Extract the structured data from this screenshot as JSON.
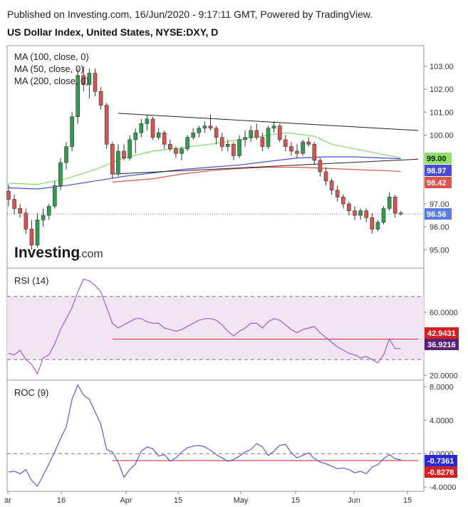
{
  "header": {
    "published": "Published on Investing.com, 16/Jun/2020 - 9:17:11 GMT, Powered by TradingView.",
    "title": "US Dollar Index, United States, NYSE:DXY, D"
  },
  "logo": {
    "brand": "Investing",
    "suffix": ".com"
  },
  "colors": {
    "bull": "#2e9e4f",
    "bear": "#d9534f",
    "ma100": "#4a4adb",
    "ma50": "#7ddc6a",
    "ma200": "#e0524a",
    "rsi": "#a05cc8",
    "roc": "#5a5ae0",
    "trend": "#222222",
    "rsi_band": "#f2e4f2",
    "support": "#d42020"
  },
  "chart_data": [
    {
      "type": "candlestick",
      "title": "US Dollar Index, United States, NYSE:DXY, D",
      "legend": [
        "MA (100, close, 0)",
        "MA (50, close, 0)",
        "MA (200, close, 0)"
      ],
      "ylim": [
        94.2,
        103.9
      ],
      "yticks": [
        "103.00",
        "102.00",
        "101.00",
        "100.00",
        "97.00",
        "96.00",
        "95.00"
      ],
      "x_labels": [
        "ar",
        "16",
        "Apr",
        "15",
        "May",
        "15",
        "Jun",
        "15"
      ],
      "candles": [
        {
          "x": 0,
          "o": 97.55,
          "h": 97.85,
          "l": 96.9,
          "c": 97.2
        },
        {
          "x": 1,
          "o": 97.2,
          "h": 97.4,
          "l": 96.55,
          "c": 96.8
        },
        {
          "x": 2,
          "o": 96.8,
          "h": 97.0,
          "l": 96.4,
          "c": 96.6
        },
        {
          "x": 3,
          "o": 96.6,
          "h": 96.8,
          "l": 95.7,
          "c": 95.9
        },
        {
          "x": 4,
          "o": 95.9,
          "h": 96.3,
          "l": 95.0,
          "c": 95.2
        },
        {
          "x": 5,
          "o": 95.2,
          "h": 96.6,
          "l": 95.1,
          "c": 96.3
        },
        {
          "x": 6,
          "o": 96.3,
          "h": 96.8,
          "l": 96.0,
          "c": 96.5
        },
        {
          "x": 7,
          "o": 96.5,
          "h": 97.0,
          "l": 96.3,
          "c": 96.9
        },
        {
          "x": 8,
          "o": 96.9,
          "h": 98.0,
          "l": 96.8,
          "c": 97.8
        },
        {
          "x": 9,
          "o": 97.8,
          "h": 99.0,
          "l": 97.6,
          "c": 98.8
        },
        {
          "x": 10,
          "o": 98.8,
          "h": 99.7,
          "l": 98.5,
          "c": 99.5
        },
        {
          "x": 11,
          "o": 99.5,
          "h": 101.0,
          "l": 99.3,
          "c": 100.8
        },
        {
          "x": 12,
          "o": 100.8,
          "h": 102.9,
          "l": 100.5,
          "c": 102.6
        },
        {
          "x": 13,
          "o": 102.6,
          "h": 103.0,
          "l": 101.9,
          "c": 102.2
        },
        {
          "x": 14,
          "o": 102.2,
          "h": 102.9,
          "l": 101.6,
          "c": 102.7
        },
        {
          "x": 15,
          "o": 102.7,
          "h": 102.9,
          "l": 101.7,
          "c": 101.9
        },
        {
          "x": 16,
          "o": 101.9,
          "h": 102.1,
          "l": 101.1,
          "c": 101.3
        },
        {
          "x": 17,
          "o": 101.3,
          "h": 101.4,
          "l": 99.4,
          "c": 99.6
        },
        {
          "x": 18,
          "o": 99.6,
          "h": 99.7,
          "l": 98.1,
          "c": 98.3
        },
        {
          "x": 19,
          "o": 98.3,
          "h": 99.6,
          "l": 98.2,
          "c": 99.3
        },
        {
          "x": 20,
          "o": 99.3,
          "h": 99.6,
          "l": 98.9,
          "c": 99.0
        },
        {
          "x": 21,
          "o": 99.0,
          "h": 100.0,
          "l": 98.9,
          "c": 99.8
        },
        {
          "x": 22,
          "o": 99.8,
          "h": 100.3,
          "l": 99.2,
          "c": 100.1
        },
        {
          "x": 23,
          "o": 100.1,
          "h": 100.7,
          "l": 99.9,
          "c": 100.5
        },
        {
          "x": 24,
          "o": 100.5,
          "h": 100.9,
          "l": 100.2,
          "c": 100.7
        },
        {
          "x": 25,
          "o": 100.7,
          "h": 100.8,
          "l": 99.8,
          "c": 99.9
        },
        {
          "x": 26,
          "o": 99.9,
          "h": 100.3,
          "l": 99.8,
          "c": 100.1
        },
        {
          "x": 27,
          "o": 100.1,
          "h": 100.2,
          "l": 99.4,
          "c": 99.6
        },
        {
          "x": 28,
          "o": 99.6,
          "h": 99.8,
          "l": 99.3,
          "c": 99.4
        },
        {
          "x": 29,
          "o": 99.4,
          "h": 99.5,
          "l": 99.0,
          "c": 99.2
        },
        {
          "x": 30,
          "o": 99.2,
          "h": 99.5,
          "l": 98.9,
          "c": 99.4
        },
        {
          "x": 31,
          "o": 99.4,
          "h": 100.0,
          "l": 99.3,
          "c": 99.9
        },
        {
          "x": 32,
          "o": 99.9,
          "h": 100.3,
          "l": 99.8,
          "c": 100.1
        },
        {
          "x": 33,
          "o": 100.1,
          "h": 100.4,
          "l": 99.9,
          "c": 100.3
        },
        {
          "x": 34,
          "o": 100.3,
          "h": 100.6,
          "l": 100.1,
          "c": 100.4
        },
        {
          "x": 35,
          "o": 100.4,
          "h": 100.9,
          "l": 100.2,
          "c": 100.3
        },
        {
          "x": 36,
          "o": 100.3,
          "h": 100.4,
          "l": 99.6,
          "c": 99.9
        },
        {
          "x": 37,
          "o": 99.9,
          "h": 100.1,
          "l": 99.3,
          "c": 99.5
        },
        {
          "x": 38,
          "o": 99.5,
          "h": 99.8,
          "l": 99.3,
          "c": 99.6
        },
        {
          "x": 39,
          "o": 99.6,
          "h": 99.7,
          "l": 98.9,
          "c": 99.1
        },
        {
          "x": 40,
          "o": 99.1,
          "h": 100.0,
          "l": 99.0,
          "c": 99.8
        },
        {
          "x": 41,
          "o": 99.8,
          "h": 100.2,
          "l": 99.5,
          "c": 99.9
        },
        {
          "x": 42,
          "o": 99.9,
          "h": 100.4,
          "l": 99.7,
          "c": 100.2
        },
        {
          "x": 43,
          "o": 100.2,
          "h": 100.5,
          "l": 99.8,
          "c": 99.9
        },
        {
          "x": 44,
          "o": 99.9,
          "h": 100.1,
          "l": 99.3,
          "c": 99.5
        },
        {
          "x": 45,
          "o": 99.5,
          "h": 100.4,
          "l": 99.4,
          "c": 100.3
        },
        {
          "x": 46,
          "o": 100.3,
          "h": 100.6,
          "l": 100.1,
          "c": 100.4
        },
        {
          "x": 47,
          "o": 100.4,
          "h": 100.5,
          "l": 99.7,
          "c": 99.8
        },
        {
          "x": 48,
          "o": 99.8,
          "h": 100.0,
          "l": 99.3,
          "c": 99.5
        },
        {
          "x": 49,
          "o": 99.5,
          "h": 99.7,
          "l": 99.1,
          "c": 99.3
        },
        {
          "x": 50,
          "o": 99.3,
          "h": 99.6,
          "l": 99.0,
          "c": 99.2
        },
        {
          "x": 51,
          "o": 99.2,
          "h": 99.8,
          "l": 99.1,
          "c": 99.7
        },
        {
          "x": 52,
          "o": 99.7,
          "h": 99.9,
          "l": 99.5,
          "c": 99.6
        },
        {
          "x": 53,
          "o": 99.6,
          "h": 99.7,
          "l": 98.7,
          "c": 98.9
        },
        {
          "x": 54,
          "o": 98.9,
          "h": 99.0,
          "l": 98.2,
          "c": 98.4
        },
        {
          "x": 55,
          "o": 98.4,
          "h": 98.6,
          "l": 97.8,
          "c": 98.0
        },
        {
          "x": 56,
          "o": 98.0,
          "h": 98.1,
          "l": 97.4,
          "c": 97.6
        },
        {
          "x": 57,
          "o": 97.6,
          "h": 97.8,
          "l": 97.1,
          "c": 97.3
        },
        {
          "x": 58,
          "o": 97.3,
          "h": 97.4,
          "l": 96.8,
          "c": 97.0
        },
        {
          "x": 59,
          "o": 97.0,
          "h": 97.1,
          "l": 96.5,
          "c": 96.7
        },
        {
          "x": 60,
          "o": 96.7,
          "h": 96.9,
          "l": 96.3,
          "c": 96.5
        },
        {
          "x": 61,
          "o": 96.5,
          "h": 96.8,
          "l": 96.3,
          "c": 96.7
        },
        {
          "x": 62,
          "o": 96.7,
          "h": 96.8,
          "l": 96.2,
          "c": 96.4
        },
        {
          "x": 63,
          "o": 96.4,
          "h": 96.6,
          "l": 95.7,
          "c": 95.9
        },
        {
          "x": 64,
          "o": 95.9,
          "h": 96.3,
          "l": 95.8,
          "c": 96.2
        },
        {
          "x": 65,
          "o": 96.2,
          "h": 96.9,
          "l": 96.1,
          "c": 96.8
        },
        {
          "x": 66,
          "o": 96.8,
          "h": 97.5,
          "l": 96.7,
          "c": 97.3
        },
        {
          "x": 67,
          "o": 97.3,
          "h": 97.4,
          "l": 96.4,
          "c": 96.6
        },
        {
          "x": 68,
          "o": 96.6,
          "h": 96.7,
          "l": 96.5,
          "c": 96.56
        }
      ],
      "ma50": [
        [
          0,
          97.9
        ],
        [
          5,
          97.85
        ],
        [
          10,
          98.1
        ],
        [
          15,
          98.5
        ],
        [
          20,
          99.0
        ],
        [
          25,
          99.3
        ],
        [
          30,
          99.45
        ],
        [
          35,
          99.6
        ],
        [
          40,
          99.8
        ],
        [
          45,
          100.0
        ],
        [
          48,
          100.1
        ],
        [
          50,
          100.05
        ],
        [
          53,
          99.95
        ],
        [
          56,
          99.6
        ],
        [
          60,
          99.4
        ],
        [
          65,
          99.15
        ],
        [
          68,
          99.0
        ]
      ],
      "ma100": [
        [
          0,
          97.7
        ],
        [
          5,
          97.65
        ],
        [
          10,
          97.8
        ],
        [
          15,
          98.0
        ],
        [
          20,
          98.2
        ],
        [
          25,
          98.35
        ],
        [
          30,
          98.5
        ],
        [
          35,
          98.6
        ],
        [
          40,
          98.7
        ],
        [
          45,
          98.85
        ],
        [
          50,
          99.0
        ],
        [
          55,
          99.05
        ],
        [
          60,
          99.05
        ],
        [
          65,
          99.0
        ],
        [
          68,
          98.97
        ]
      ],
      "ma200": [
        [
          18,
          97.95
        ],
        [
          25,
          98.1
        ],
        [
          30,
          98.3
        ],
        [
          35,
          98.45
        ],
        [
          40,
          98.55
        ],
        [
          45,
          98.6
        ],
        [
          50,
          98.6
        ],
        [
          55,
          98.55
        ],
        [
          60,
          98.5
        ],
        [
          65,
          98.45
        ],
        [
          68,
          98.42
        ]
      ],
      "trendlines": [
        {
          "x1": 19,
          "y1": 100.95,
          "x2": 71,
          "y2": 100.2
        },
        {
          "x1": 18,
          "y1": 98.3,
          "x2": 71,
          "y2": 98.95
        }
      ],
      "price_labels": [
        {
          "text": "99.00",
          "value": 99.0,
          "series": "ma50"
        },
        {
          "text": "98.97",
          "value": 98.97,
          "series": "ma100"
        },
        {
          "text": "98.42",
          "value": 98.42,
          "series": "ma200"
        },
        {
          "text": "96.56",
          "value": 96.56,
          "series": "last"
        }
      ]
    },
    {
      "type": "line",
      "title": "RSI (14)",
      "ylim": [
        17,
        88
      ],
      "band": [
        30,
        70
      ],
      "yticks": [
        "60.0000",
        "20.0000"
      ],
      "x": [
        0,
        1,
        2,
        3,
        4,
        5,
        6,
        7,
        8,
        9,
        10,
        11,
        12,
        13,
        14,
        15,
        16,
        17,
        18,
        19,
        20,
        21,
        22,
        23,
        24,
        25,
        26,
        27,
        28,
        29,
        30,
        31,
        32,
        33,
        34,
        35,
        36,
        37,
        38,
        39,
        40,
        41,
        42,
        43,
        44,
        45,
        46,
        47,
        48,
        49,
        50,
        51,
        52,
        53,
        54,
        55,
        56,
        57,
        58,
        59,
        60,
        61,
        62,
        63,
        64,
        65,
        66,
        67,
        68
      ],
      "y": [
        34,
        33,
        36,
        30,
        27,
        21,
        31,
        33,
        40,
        49,
        56,
        63,
        73,
        81,
        80,
        77,
        73,
        63,
        53,
        50,
        52,
        54,
        56,
        56,
        54,
        53,
        53,
        50,
        49,
        48,
        49,
        51,
        53,
        55,
        56,
        56,
        55,
        52,
        48,
        45,
        48,
        50,
        53,
        53,
        50,
        54,
        56,
        55,
        52,
        49,
        47,
        49,
        50,
        51,
        47,
        44,
        41,
        38,
        36,
        34,
        33,
        31,
        32,
        30,
        28,
        33,
        43,
        37,
        37
      ],
      "support": {
        "x1": 18,
        "x2": 71,
        "y": 42.9431
      },
      "labels": [
        {
          "text": "42.9431",
          "value": 42.9431
        },
        {
          "text": "36.9216",
          "value": 36.9216
        }
      ]
    },
    {
      "type": "line",
      "title": "ROC (9)",
      "ylim": [
        -4.5,
        8.8
      ],
      "zero": 0,
      "yticks": [
        "8.0000",
        "4.0000",
        "0.0000",
        "-4.0000"
      ],
      "x": [
        0,
        1,
        2,
        3,
        4,
        5,
        6,
        7,
        8,
        9,
        10,
        11,
        12,
        13,
        14,
        15,
        16,
        17,
        18,
        19,
        20,
        21,
        22,
        23,
        24,
        25,
        26,
        27,
        28,
        29,
        30,
        31,
        32,
        33,
        34,
        35,
        36,
        37,
        38,
        39,
        40,
        41,
        42,
        43,
        44,
        45,
        46,
        47,
        48,
        49,
        50,
        51,
        52,
        53,
        54,
        55,
        56,
        57,
        58,
        59,
        60,
        61,
        62,
        63,
        64,
        65,
        66,
        67,
        68
      ],
      "y": [
        -2.2,
        -2.1,
        -2.4,
        -1.9,
        -3.2,
        -3.9,
        -2.6,
        -1.2,
        0.2,
        1.8,
        3.2,
        6.5,
        8.2,
        7.0,
        6.5,
        5.0,
        3.5,
        0.5,
        0.2,
        -1.0,
        -2.8,
        -1.9,
        -1.2,
        0.3,
        0.8,
        0.6,
        -0.3,
        -0.1,
        -0.9,
        -0.5,
        0.2,
        0.7,
        0.9,
        1.0,
        0.8,
        0.4,
        -0.1,
        -0.5,
        -0.9,
        -0.7,
        -0.3,
        0.2,
        0.5,
        1.2,
        0.8,
        -0.2,
        0.3,
        1.0,
        1.1,
        0.1,
        -0.5,
        -0.2,
        0.1,
        -0.6,
        -1.0,
        -1.2,
        -1.5,
        -1.8,
        -1.7,
        -1.9,
        -2.3,
        -2.1,
        -2.4,
        -1.6,
        -1.3,
        -0.6,
        -0.1,
        -0.6,
        -0.7361
      ],
      "support": {
        "x1": 18,
        "x2": 71,
        "y": -0.8278
      },
      "labels": [
        {
          "text": "-0.7361",
          "value": -0.7361
        },
        {
          "text": "-0.8278",
          "value": -0.8278
        }
      ]
    }
  ]
}
